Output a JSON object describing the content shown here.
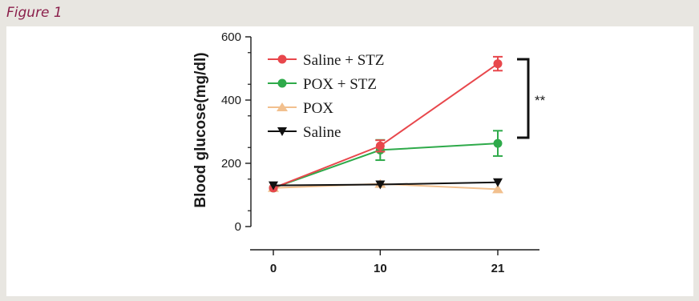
{
  "figure_label": "Figure 1",
  "chart_data": {
    "type": "line",
    "title": "",
    "xlabel": "",
    "ylabel": "Blood glucose(mg/dl)",
    "x": [
      0,
      10,
      21
    ],
    "x_tick_labels": [
      "0",
      "10",
      "21"
    ],
    "ylim": [
      0,
      600
    ],
    "y_ticks": [
      0,
      200,
      400,
      600
    ],
    "y_tick_labels": [
      "0",
      "200",
      "400",
      "600"
    ],
    "grid": false,
    "legend_position": "top-left",
    "series": [
      {
        "name": "Saline + STZ",
        "marker": "circle",
        "color": "#e8474c",
        "values": [
          122,
          255,
          515
        ],
        "errors": [
          0,
          18,
          22
        ]
      },
      {
        "name": "POX + STZ",
        "marker": "circle",
        "color": "#2eaa4a",
        "values": [
          122,
          242,
          263
        ],
        "errors": [
          0,
          32,
          40
        ]
      },
      {
        "name": "POX",
        "marker": "triangle-up",
        "color": "#f2c08e",
        "values": [
          122,
          135,
          118
        ],
        "errors": [
          0,
          0,
          0
        ]
      },
      {
        "name": "Saline",
        "marker": "triangle-down",
        "color": "#111111",
        "values": [
          130,
          133,
          140
        ],
        "errors": [
          0,
          0,
          0
        ]
      }
    ],
    "annotations": [
      {
        "text": "**",
        "between": [
          "Saline + STZ",
          "POX + STZ"
        ],
        "at_x": 21
      }
    ]
  }
}
